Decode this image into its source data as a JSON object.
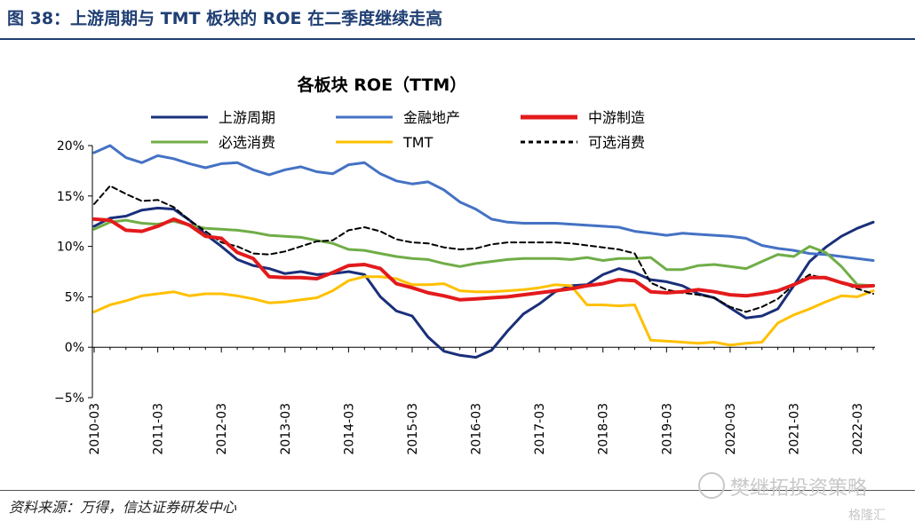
{
  "figure": {
    "title": "图 38：上游周期与 TMT 板块的 ROE 在二季度继续走高",
    "source": "资料来源：万得，信达证券研发中心",
    "watermark": "樊继拓投资策略",
    "watermark_sub": "格隆汇"
  },
  "chart_data": {
    "type": "line",
    "title": "各板块 ROE（TTM）",
    "xlabel": "",
    "ylabel": "",
    "ylim": [
      -5,
      20
    ],
    "yticks": [
      -5,
      0,
      5,
      10,
      15,
      20
    ],
    "yticklabels": [
      "−5%",
      "0%",
      "5%",
      "10%",
      "15%",
      "20%"
    ],
    "y_unit": "%",
    "xticks": [
      "2010-03",
      "2011-03",
      "2012-03",
      "2013-03",
      "2014-03",
      "2015-03",
      "2016-03",
      "2017-03",
      "2018-03",
      "2019-03",
      "2020-03",
      "2021-03",
      "2022-03"
    ],
    "x": [
      "2010-03",
      "2010-06",
      "2010-09",
      "2010-12",
      "2011-03",
      "2011-06",
      "2011-09",
      "2011-12",
      "2012-03",
      "2012-06",
      "2012-09",
      "2012-12",
      "2013-03",
      "2013-06",
      "2013-09",
      "2013-12",
      "2014-03",
      "2014-06",
      "2014-09",
      "2014-12",
      "2015-03",
      "2015-06",
      "2015-09",
      "2015-12",
      "2016-03",
      "2016-06",
      "2016-09",
      "2016-12",
      "2017-03",
      "2017-06",
      "2017-09",
      "2017-12",
      "2018-03",
      "2018-06",
      "2018-09",
      "2018-12",
      "2019-03",
      "2019-06",
      "2019-09",
      "2019-12",
      "2020-03",
      "2020-06",
      "2020-09",
      "2020-12",
      "2021-03",
      "2021-06",
      "2021-09",
      "2021-12",
      "2022-03",
      "2022-06"
    ],
    "grid": false,
    "legend_position": "top",
    "series": [
      {
        "name": "上游周期",
        "color": "#1a2f7a",
        "dash": "solid",
        "values": [
          12.0,
          12.8,
          13.0,
          13.6,
          13.8,
          13.7,
          12.6,
          11.2,
          10.0,
          8.7,
          8.1,
          7.8,
          7.3,
          7.5,
          7.2,
          7.3,
          7.5,
          7.2,
          5.0,
          3.6,
          3.1,
          1.0,
          -0.4,
          -0.8,
          -1.0,
          -0.3,
          1.6,
          3.3,
          4.3,
          5.5,
          6.1,
          6.2,
          7.2,
          7.8,
          7.4,
          6.7,
          6.5,
          6.1,
          5.3,
          4.9,
          3.9,
          2.9,
          3.1,
          3.8,
          6.1,
          8.5,
          9.9,
          11.0,
          11.8,
          12.4
        ]
      },
      {
        "name": "金融地产",
        "color": "#4472c4",
        "dash": "solid",
        "values": [
          19.3,
          20.0,
          18.8,
          18.3,
          19.0,
          18.7,
          18.2,
          17.8,
          18.2,
          18.3,
          17.6,
          17.1,
          17.6,
          17.9,
          17.4,
          17.2,
          18.1,
          18.3,
          17.2,
          16.5,
          16.2,
          16.4,
          15.6,
          14.4,
          13.7,
          12.7,
          12.4,
          12.3,
          12.3,
          12.3,
          12.2,
          12.1,
          12.0,
          11.9,
          11.5,
          11.3,
          11.1,
          11.3,
          11.2,
          11.1,
          11.0,
          10.8,
          10.1,
          9.8,
          9.6,
          9.3,
          9.2,
          9.0,
          8.8,
          8.6
        ]
      },
      {
        "name": "中游制造",
        "color": "#e31a1c",
        "dash": "solid",
        "values": [
          12.7,
          12.6,
          11.6,
          11.5,
          12.0,
          12.7,
          12.1,
          11.0,
          10.8,
          9.4,
          8.8,
          7.0,
          6.9,
          6.9,
          6.8,
          7.4,
          8.1,
          8.2,
          7.8,
          6.3,
          5.9,
          5.4,
          5.1,
          4.7,
          4.8,
          4.9,
          5.0,
          5.2,
          5.4,
          5.6,
          5.8,
          6.1,
          6.3,
          6.7,
          6.6,
          5.5,
          5.4,
          5.5,
          5.7,
          5.5,
          5.2,
          5.1,
          5.3,
          5.6,
          6.2,
          6.9,
          6.9,
          6.4,
          6.0,
          6.1
        ]
      },
      {
        "name": "必选消费",
        "color": "#70ad47",
        "dash": "solid",
        "values": [
          11.7,
          12.4,
          12.6,
          12.3,
          12.2,
          12.5,
          12.1,
          11.8,
          11.7,
          11.6,
          11.4,
          11.1,
          11.0,
          10.9,
          10.6,
          10.3,
          9.7,
          9.6,
          9.3,
          9.0,
          8.8,
          8.7,
          8.3,
          8.0,
          8.3,
          8.5,
          8.7,
          8.8,
          8.8,
          8.8,
          8.7,
          8.9,
          8.6,
          8.8,
          8.8,
          8.9,
          7.7,
          7.7,
          8.1,
          8.2,
          8.0,
          7.8,
          8.5,
          9.2,
          9.0,
          10.0,
          9.4,
          8.0,
          6.2,
          6.1
        ]
      },
      {
        "name": "TMT",
        "color": "#ffc000",
        "dash": "solid",
        "values": [
          3.5,
          4.2,
          4.6,
          5.1,
          5.3,
          5.5,
          5.1,
          5.3,
          5.3,
          5.1,
          4.8,
          4.4,
          4.5,
          4.7,
          4.9,
          5.6,
          6.6,
          7.0,
          7.0,
          6.8,
          6.2,
          6.2,
          6.3,
          5.6,
          5.5,
          5.5,
          5.6,
          5.7,
          5.9,
          6.2,
          6.1,
          4.2,
          4.2,
          4.1,
          4.2,
          0.7,
          0.6,
          0.5,
          0.4,
          0.5,
          0.2,
          0.4,
          0.5,
          2.4,
          3.2,
          3.8,
          4.5,
          5.1,
          5.0,
          5.6
        ]
      },
      {
        "name": "可选消费",
        "color": "#000000",
        "dash": "dashed",
        "values": [
          14.2,
          16.0,
          15.2,
          14.5,
          14.6,
          13.9,
          12.6,
          11.5,
          10.4,
          10.0,
          9.3,
          9.2,
          9.5,
          10.0,
          10.5,
          10.6,
          11.6,
          11.9,
          11.5,
          10.7,
          10.4,
          10.3,
          9.9,
          9.7,
          9.8,
          10.2,
          10.4,
          10.4,
          10.4,
          10.4,
          10.3,
          10.1,
          9.9,
          9.7,
          9.3,
          6.4,
          5.7,
          5.4,
          5.2,
          4.9,
          4.0,
          3.5,
          4.0,
          4.8,
          6.2,
          7.2,
          6.8,
          6.4,
          5.8,
          5.3
        ]
      }
    ]
  }
}
